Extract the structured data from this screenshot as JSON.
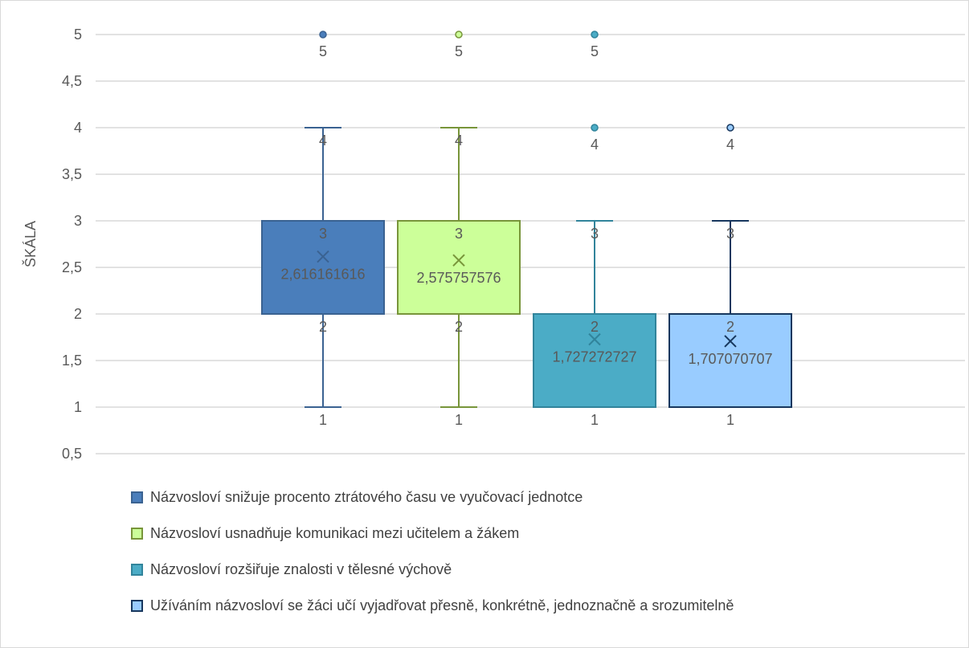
{
  "chart_data": {
    "type": "box",
    "ylabel": "ŠKÁLA",
    "ylim": [
      0.5,
      5
    ],
    "yticks": [
      "0,5",
      "1",
      "1,5",
      "2",
      "2,5",
      "3",
      "3,5",
      "4",
      "4,5",
      "5"
    ],
    "ytick_values": [
      0.5,
      1,
      1.5,
      2,
      2.5,
      3,
      3.5,
      4,
      4.5,
      5
    ],
    "grid": true,
    "legend_position": "bottom",
    "series": [
      {
        "name": "Názvosloví snižuje procento ztrátového času ve vyučovací jednotce",
        "color": "#4a7ebb",
        "stroke": "#3a6291",
        "min": 1,
        "q1": 2,
        "median": 2,
        "q3": 3,
        "max": 4,
        "mean": 2.616161616,
        "outliers": [
          5
        ],
        "labels": {
          "min": "1",
          "q1": "2",
          "median": "2",
          "q3": "3",
          "max": "4",
          "mean": "2,616161616",
          "outliers": [
            "5"
          ]
        }
      },
      {
        "name": "Názvosloví usnadňuje komunikaci mezi učitelem a žákem",
        "color": "#ccff99",
        "stroke": "#78953a",
        "min": 1,
        "q1": 2,
        "median": 2,
        "q3": 3,
        "max": 4,
        "mean": 2.575757576,
        "outliers": [
          5
        ],
        "labels": {
          "min": "1",
          "q1": "2",
          "median": "2",
          "q3": "3",
          "max": "4",
          "mean": "2,575757576",
          "outliers": [
            "5"
          ]
        }
      },
      {
        "name": "Názvosloví rozšiřuje znalosti v tělesné výchově",
        "color": "#4bacc6",
        "stroke": "#31849b",
        "min": 1,
        "q1": 1,
        "median": 2,
        "q3": 2,
        "max": 3,
        "mean": 1.727272727,
        "outliers": [
          4,
          5
        ],
        "labels": {
          "min": "1",
          "q1": "1",
          "median": "2",
          "q3": "2",
          "max": "3",
          "mean": "1,727272727",
          "outliers": [
            "4",
            "5"
          ]
        }
      },
      {
        "name": "Užíváním názvosloví se žáci učí vyjadřovat přesně, konkrétně, jednoznačně a srozumitelně",
        "color": "#99ccff",
        "stroke": "#17375e",
        "min": 1,
        "q1": 1,
        "median": 2,
        "q3": 2,
        "max": 3,
        "mean": 1.707070707,
        "outliers": [
          4
        ],
        "labels": {
          "min": "1",
          "q1": "1",
          "median": "2",
          "q3": "2",
          "max": "3",
          "mean": "1,707070707",
          "outliers": [
            "4"
          ]
        }
      }
    ]
  }
}
